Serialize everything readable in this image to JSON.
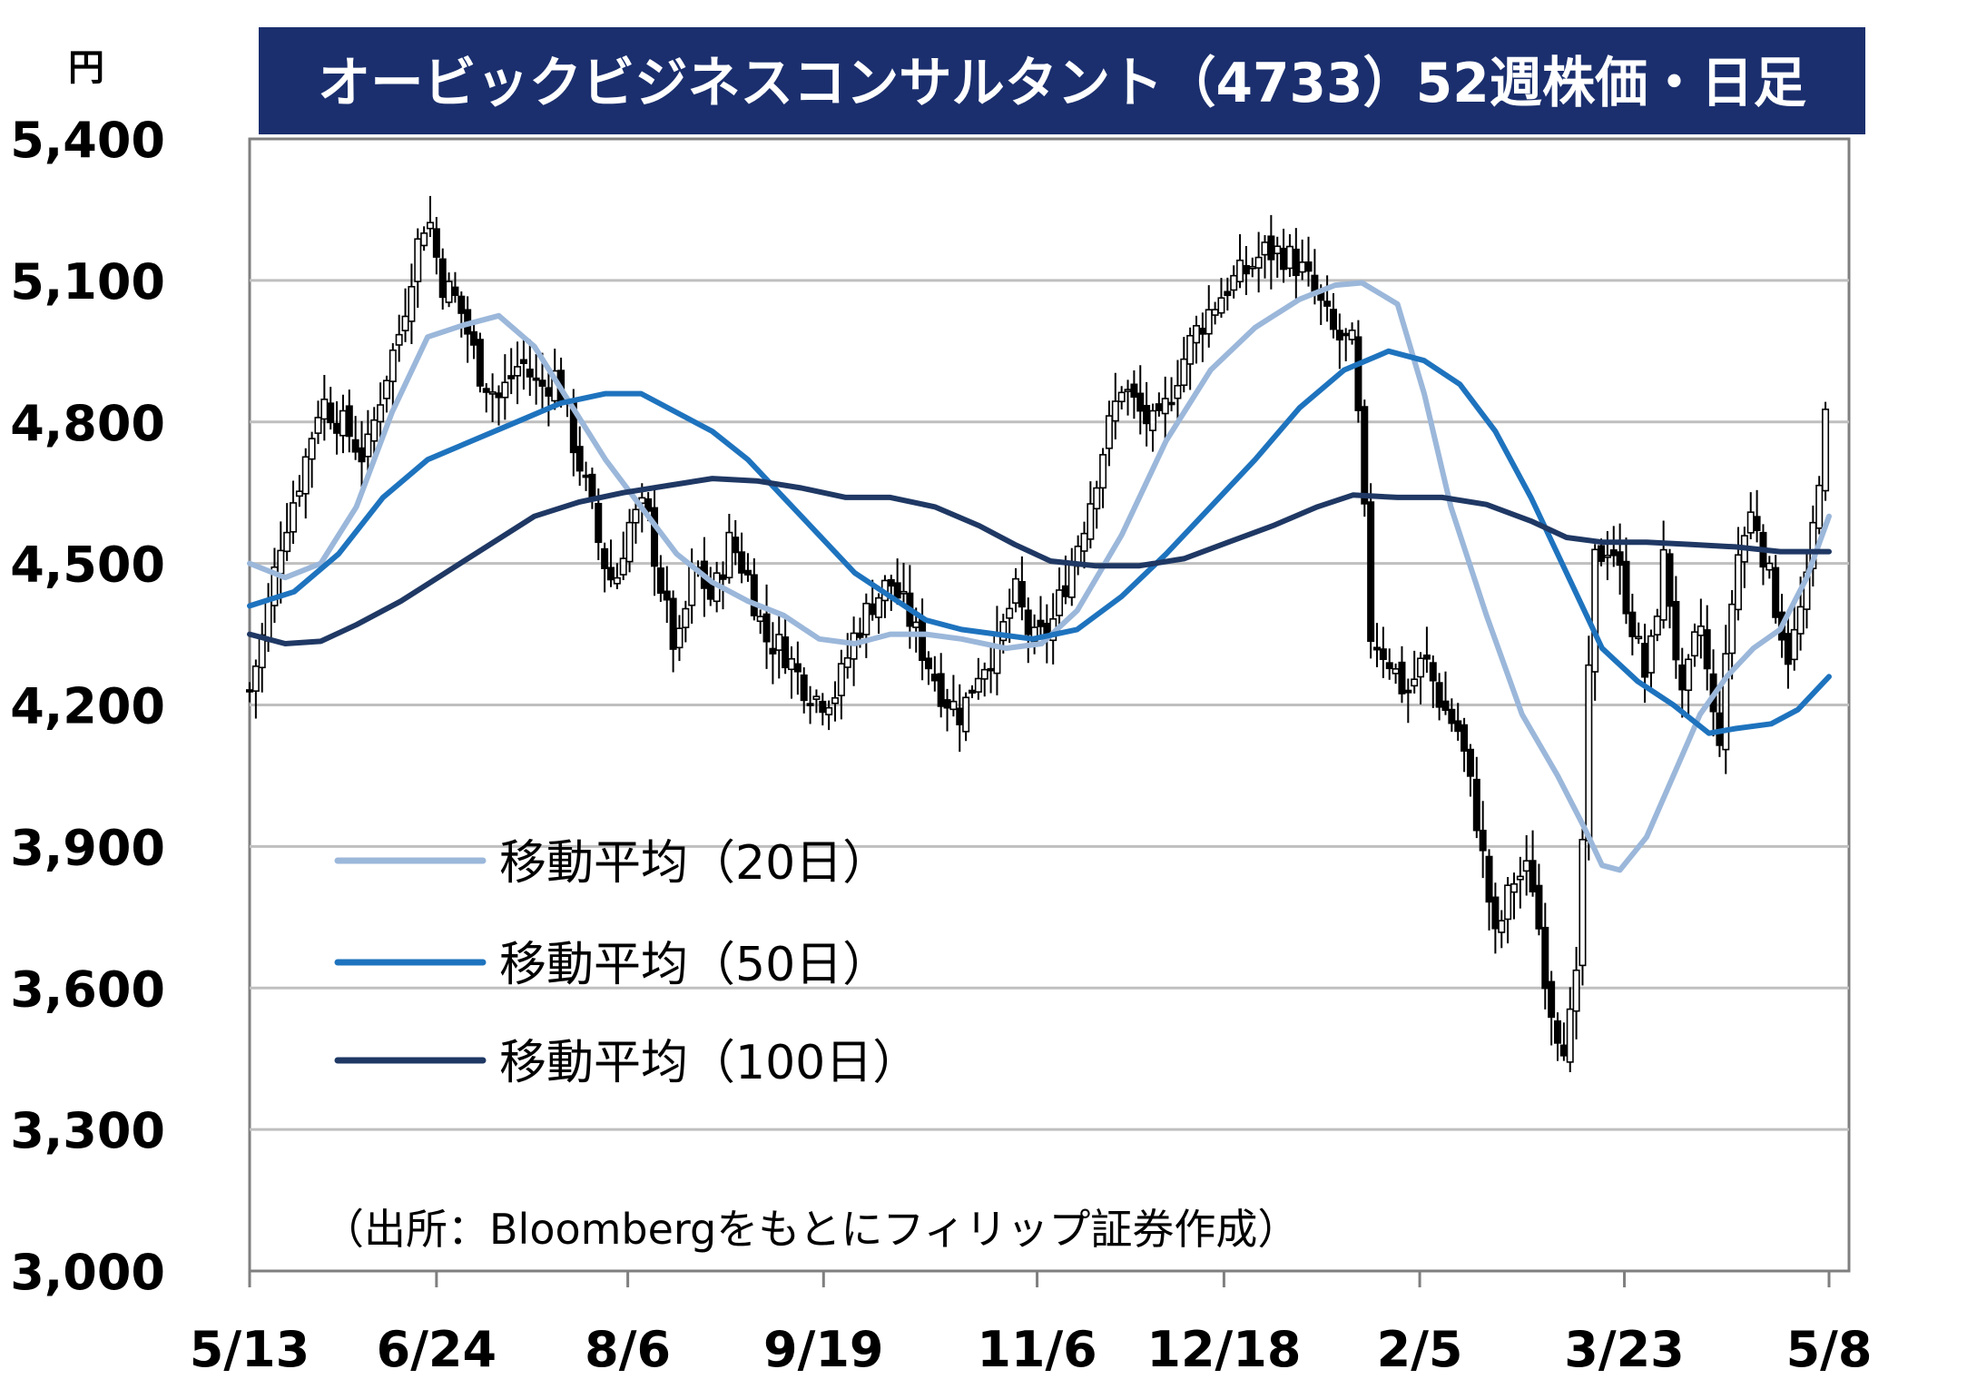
{
  "chart_data": {
    "type": "candlestick",
    "title": "オービックビジネスコンサルタント（4733）52週株価・日足",
    "unit_label": "円",
    "source_note": "（出所：Bloombergをもとにフィリップ証券作成）",
    "ylim": [
      3000,
      5400
    ],
    "y_ticks": [
      "3,000",
      "3,300",
      "3,600",
      "3,900",
      "4,200",
      "4,500",
      "4,800",
      "5,100",
      "5,400"
    ],
    "y_tick_values": [
      3000,
      3300,
      3600,
      3900,
      4200,
      4500,
      4800,
      5100,
      5400
    ],
    "x_tick_labels": [
      "5/13",
      "6/24",
      "8/6",
      "9/19",
      "11/6",
      "12/18",
      "2/5",
      "3/23",
      "5/8"
    ],
    "x_tick_days": [
      0,
      42,
      85,
      129,
      177,
      219,
      263,
      309,
      355
    ],
    "grid": true,
    "legend_position": "left-middle",
    "colors": {
      "title_bg": "#1b2f6e",
      "title_text": "#ffffff",
      "candle": "#000000",
      "ma20": "#9bb7da",
      "ma50": "#1e73be",
      "ma100": "#1f3864",
      "grid": "#bfbfbf",
      "axis": "#7f7f7f"
    },
    "series": [
      {
        "name": "移動平均（20日）",
        "key": "ma20",
        "points": [
          [
            0,
            4500
          ],
          [
            8,
            4470
          ],
          [
            16,
            4500
          ],
          [
            24,
            4620
          ],
          [
            32,
            4820
          ],
          [
            40,
            4980
          ],
          [
            48,
            5005
          ],
          [
            56,
            5025
          ],
          [
            64,
            4960
          ],
          [
            72,
            4840
          ],
          [
            80,
            4720
          ],
          [
            88,
            4620
          ],
          [
            96,
            4520
          ],
          [
            104,
            4460
          ],
          [
            112,
            4420
          ],
          [
            120,
            4390
          ],
          [
            128,
            4340
          ],
          [
            136,
            4330
          ],
          [
            144,
            4350
          ],
          [
            152,
            4350
          ],
          [
            160,
            4340
          ],
          [
            170,
            4320
          ],
          [
            178,
            4330
          ],
          [
            186,
            4400
          ],
          [
            196,
            4560
          ],
          [
            206,
            4760
          ],
          [
            216,
            4910
          ],
          [
            226,
            5000
          ],
          [
            236,
            5060
          ],
          [
            244,
            5090
          ],
          [
            250,
            5095
          ],
          [
            258,
            5050
          ],
          [
            264,
            4860
          ],
          [
            270,
            4620
          ],
          [
            278,
            4390
          ],
          [
            286,
            4180
          ],
          [
            294,
            4050
          ],
          [
            300,
            3940
          ],
          [
            304,
            3860
          ],
          [
            308,
            3850
          ],
          [
            314,
            3920
          ],
          [
            320,
            4050
          ],
          [
            326,
            4180
          ],
          [
            332,
            4260
          ],
          [
            338,
            4320
          ],
          [
            344,
            4360
          ],
          [
            350,
            4470
          ],
          [
            355,
            4600
          ]
        ]
      },
      {
        "name": "移動平均（50日）",
        "key": "ma50",
        "points": [
          [
            0,
            4410
          ],
          [
            10,
            4440
          ],
          [
            20,
            4520
          ],
          [
            30,
            4640
          ],
          [
            40,
            4720
          ],
          [
            50,
            4760
          ],
          [
            60,
            4800
          ],
          [
            70,
            4840
          ],
          [
            80,
            4860
          ],
          [
            88,
            4860
          ],
          [
            96,
            4820
          ],
          [
            104,
            4780
          ],
          [
            112,
            4720
          ],
          [
            120,
            4640
          ],
          [
            128,
            4560
          ],
          [
            136,
            4480
          ],
          [
            144,
            4430
          ],
          [
            152,
            4380
          ],
          [
            160,
            4360
          ],
          [
            168,
            4350
          ],
          [
            176,
            4340
          ],
          [
            186,
            4360
          ],
          [
            196,
            4430
          ],
          [
            206,
            4520
          ],
          [
            216,
            4620
          ],
          [
            226,
            4720
          ],
          [
            236,
            4830
          ],
          [
            246,
            4910
          ],
          [
            256,
            4950
          ],
          [
            264,
            4930
          ],
          [
            272,
            4880
          ],
          [
            280,
            4780
          ],
          [
            288,
            4640
          ],
          [
            296,
            4480
          ],
          [
            304,
            4320
          ],
          [
            312,
            4250
          ],
          [
            320,
            4200
          ],
          [
            328,
            4140
          ],
          [
            334,
            4150
          ],
          [
            342,
            4160
          ],
          [
            348,
            4190
          ],
          [
            355,
            4260
          ]
        ]
      },
      {
        "name": "移動平均（100日）",
        "key": "ma100",
        "points": [
          [
            0,
            4350
          ],
          [
            8,
            4330
          ],
          [
            16,
            4335
          ],
          [
            24,
            4370
          ],
          [
            34,
            4420
          ],
          [
            44,
            4480
          ],
          [
            54,
            4540
          ],
          [
            64,
            4600
          ],
          [
            74,
            4630
          ],
          [
            84,
            4650
          ],
          [
            94,
            4665
          ],
          [
            104,
            4680
          ],
          [
            114,
            4675
          ],
          [
            124,
            4660
          ],
          [
            134,
            4640
          ],
          [
            144,
            4640
          ],
          [
            154,
            4620
          ],
          [
            164,
            4580
          ],
          [
            172,
            4540
          ],
          [
            180,
            4505
          ],
          [
            190,
            4495
          ],
          [
            200,
            4495
          ],
          [
            210,
            4510
          ],
          [
            220,
            4545
          ],
          [
            230,
            4580
          ],
          [
            240,
            4620
          ],
          [
            248,
            4645
          ],
          [
            258,
            4640
          ],
          [
            268,
            4640
          ],
          [
            278,
            4625
          ],
          [
            288,
            4590
          ],
          [
            296,
            4555
          ],
          [
            304,
            4545
          ],
          [
            314,
            4545
          ],
          [
            324,
            4540
          ],
          [
            334,
            4535
          ],
          [
            344,
            4525
          ],
          [
            355,
            4525
          ]
        ]
      }
    ],
    "candles_close_anchors": [
      [
        0,
        4230
      ],
      [
        3,
        4350
      ],
      [
        7,
        4550
      ],
      [
        12,
        4700
      ],
      [
        16,
        4850
      ],
      [
        22,
        4780
      ],
      [
        26,
        4720
      ],
      [
        30,
        4880
      ],
      [
        34,
        5000
      ],
      [
        37,
        5150
      ],
      [
        40,
        5250
      ],
      [
        43,
        5100
      ],
      [
        47,
        5050
      ],
      [
        52,
        4900
      ],
      [
        56,
        4850
      ],
      [
        61,
        4930
      ],
      [
        65,
        4870
      ],
      [
        69,
        4900
      ],
      [
        73,
        4750
      ],
      [
        76,
        4650
      ],
      [
        79,
        4520
      ],
      [
        82,
        4450
      ],
      [
        85,
        4580
      ],
      [
        89,
        4620
      ],
      [
        92,
        4470
      ],
      [
        96,
        4300
      ],
      [
        100,
        4500
      ],
      [
        104,
        4420
      ],
      [
        108,
        4550
      ],
      [
        112,
        4470
      ],
      [
        116,
        4340
      ],
      [
        120,
        4320
      ],
      [
        124,
        4250
      ],
      [
        128,
        4210
      ],
      [
        132,
        4230
      ],
      [
        136,
        4350
      ],
      [
        140,
        4420
      ],
      [
        144,
        4460
      ],
      [
        148,
        4390
      ],
      [
        152,
        4300
      ],
      [
        156,
        4220
      ],
      [
        160,
        4180
      ],
      [
        164,
        4280
      ],
      [
        168,
        4320
      ],
      [
        172,
        4440
      ],
      [
        176,
        4330
      ],
      [
        180,
        4360
      ],
      [
        184,
        4480
      ],
      [
        188,
        4600
      ],
      [
        192,
        4750
      ],
      [
        196,
        4880
      ],
      [
        200,
        4820
      ],
      [
        204,
        4780
      ],
      [
        208,
        4890
      ],
      [
        212,
        4980
      ],
      [
        216,
        5040
      ],
      [
        220,
        5090
      ],
      [
        224,
        5120
      ],
      [
        228,
        5160
      ],
      [
        232,
        5160
      ],
      [
        236,
        5130
      ],
      [
        240,
        5060
      ],
      [
        244,
        4980
      ],
      [
        248,
        4960
      ],
      [
        250,
        4700
      ],
      [
        252,
        4350
      ],
      [
        256,
        4300
      ],
      [
        260,
        4220
      ],
      [
        264,
        4300
      ],
      [
        268,
        4200
      ],
      [
        272,
        4140
      ],
      [
        276,
        3950
      ],
      [
        280,
        3700
      ],
      [
        284,
        3830
      ],
      [
        288,
        3850
      ],
      [
        292,
        3580
      ],
      [
        295,
        3480
      ],
      [
        298,
        3560
      ],
      [
        300,
        4000
      ],
      [
        302,
        4500
      ],
      [
        306,
        4550
      ],
      [
        310,
        4400
      ],
      [
        314,
        4250
      ],
      [
        318,
        4520
      ],
      [
        322,
        4200
      ],
      [
        326,
        4380
      ],
      [
        330,
        4100
      ],
      [
        334,
        4500
      ],
      [
        338,
        4620
      ],
      [
        342,
        4450
      ],
      [
        346,
        4300
      ],
      [
        350,
        4450
      ],
      [
        354,
        4800
      ],
      [
        355,
        4800
      ]
    ],
    "legend": {
      "ma20": "移動平均（20日）",
      "ma50": "移動平均（50日）",
      "ma100": "移動平均（100日）"
    }
  }
}
